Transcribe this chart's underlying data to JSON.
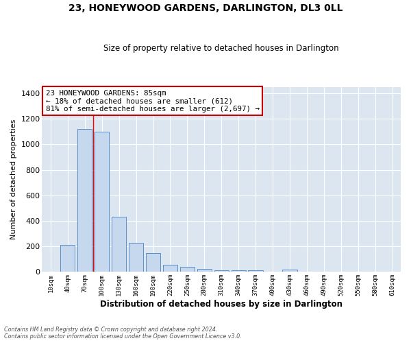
{
  "title": "23, HONEYWOOD GARDENS, DARLINGTON, DL3 0LL",
  "subtitle": "Size of property relative to detached houses in Darlington",
  "xlabel": "Distribution of detached houses by size in Darlington",
  "ylabel": "Number of detached properties",
  "bar_color": "#c5d8ed",
  "bar_edge_color": "#5b8fc9",
  "plot_bg_color": "#dce6f1",
  "fig_bg_color": "#ffffff",
  "grid_color": "#ffffff",
  "categories": [
    "10sqm",
    "40sqm",
    "70sqm",
    "100sqm",
    "130sqm",
    "160sqm",
    "190sqm",
    "220sqm",
    "250sqm",
    "280sqm",
    "310sqm",
    "340sqm",
    "370sqm",
    "400sqm",
    "430sqm",
    "460sqm",
    "490sqm",
    "520sqm",
    "550sqm",
    "580sqm",
    "610sqm"
  ],
  "values": [
    0,
    210,
    1120,
    1100,
    430,
    230,
    145,
    57,
    38,
    25,
    12,
    15,
    15,
    0,
    20,
    0,
    0,
    0,
    0,
    0,
    0
  ],
  "ylim": [
    0,
    1450
  ],
  "yticks": [
    0,
    200,
    400,
    600,
    800,
    1000,
    1200,
    1400
  ],
  "property_line_x": 2.5,
  "annotation_title": "23 HONEYWOOD GARDENS: 85sqm",
  "annotation_line1": "← 18% of detached houses are smaller (612)",
  "annotation_line2": "81% of semi-detached houses are larger (2,697) →",
  "footer_line1": "Contains HM Land Registry data © Crown copyright and database right 2024.",
  "footer_line2": "Contains public sector information licensed under the Open Government Licence v3.0."
}
